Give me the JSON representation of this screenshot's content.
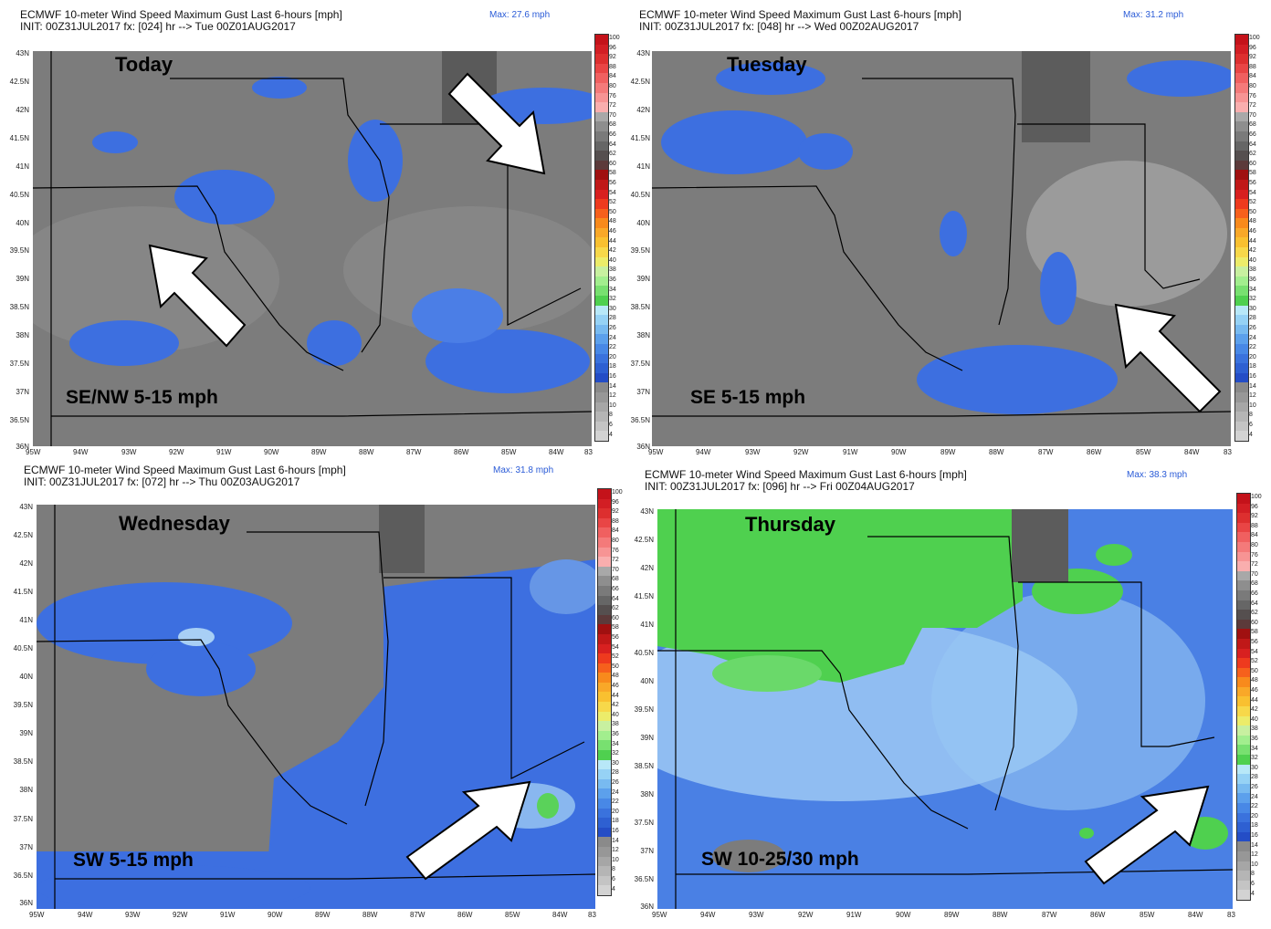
{
  "panels": [
    {
      "title": "ECMWF 10-meter Wind Speed Maximum Gust Last 6-hours [mph]",
      "init": "INIT: 00Z31JUL2017 fx: [024] hr --> Tue 00Z01AUG2017",
      "max": "Max: 27.6 mph",
      "day": "Today",
      "wind": "SE/NW 5-15 mph",
      "theme": "gray",
      "arrows": [
        "nw-icon-pair"
      ]
    },
    {
      "title": "ECMWF 10-meter Wind Speed Maximum Gust Last 6-hours [mph]",
      "init": "INIT: 00Z31JUL2017 fx: [048] hr --> Wed 00Z02AUG2017",
      "max": "Max: 31.2 mph",
      "day": "Tuesday",
      "wind": "SE 5-15 mph",
      "theme": "gray",
      "arrows": [
        "nw-arrow-icon"
      ]
    },
    {
      "title": "ECMWF 10-meter Wind Speed Maximum Gust Last 6-hours [mph]",
      "init": "INIT: 00Z31JUL2017 fx: [072] hr --> Thu 00Z03AUG2017",
      "max": "Max: 31.8 mph",
      "day": "Wednesday",
      "wind": "SW 5-15 mph",
      "theme": "blue",
      "arrows": [
        "ne-arrow-icon"
      ]
    },
    {
      "title": "ECMWF 10-meter Wind Speed Maximum Gust Last 6-hours [mph]",
      "init": "INIT: 00Z31JUL2017 fx: [096] hr --> Fri 00Z04AUG2017",
      "max": "Max: 38.3 mph",
      "day": "Thursday",
      "wind": "SW 10-25/30 mph",
      "theme": "green",
      "arrows": [
        "ne-arrow-icon"
      ]
    }
  ],
  "lat_labels": [
    "43N",
    "42.5N",
    "42N",
    "41.5N",
    "41N",
    "40.5N",
    "40N",
    "39.5N",
    "39N",
    "38.5N",
    "38N",
    "37.5N",
    "37N",
    "36.5N",
    "36N"
  ],
  "lon_labels": [
    "95W",
    "94W",
    "93W",
    "92W",
    "91W",
    "90W",
    "89W",
    "88W",
    "87W",
    "86W",
    "85W",
    "84W",
    "83"
  ],
  "colorbar": [
    "100",
    "96",
    "92",
    "88",
    "84",
    "80",
    "76",
    "72",
    "70",
    "68",
    "66",
    "64",
    "62",
    "60",
    "58",
    "56",
    "54",
    "52",
    "50",
    "48",
    "46",
    "44",
    "42",
    "40",
    "38",
    "36",
    "34",
    "32",
    "30",
    "28",
    "26",
    "24",
    "22",
    "20",
    "18",
    "16",
    "14",
    "12",
    "10",
    "8",
    "6",
    "4"
  ],
  "colorbar_colors": [
    "#c4121a",
    "#d21e24",
    "#dd2f2f",
    "#e94545",
    "#f06060",
    "#f47a7a",
    "#f79494",
    "#f9aeae",
    "#a8a8a8",
    "#8e8e8e",
    "#7a7a7a",
    "#666",
    "#554f4f",
    "#5c3a3a",
    "#a01010",
    "#c01818",
    "#d82020",
    "#ee3a1e",
    "#f6601c",
    "#f88a1c",
    "#f9a828",
    "#f9c030",
    "#f7d84a",
    "#ecec6a",
    "#c8f0a0",
    "#a2ee8e",
    "#78e070",
    "#4fd04f",
    "#b8e8f8",
    "#96d2f5",
    "#78baf0",
    "#5ca0ec",
    "#4888e6",
    "#3a72dd",
    "#2e60d2",
    "#244dc6",
    "#8a8a8a",
    "#979797",
    "#a6a6a6",
    "#b5b5b5",
    "#c4c4c4",
    "#d3d3d3"
  ]
}
